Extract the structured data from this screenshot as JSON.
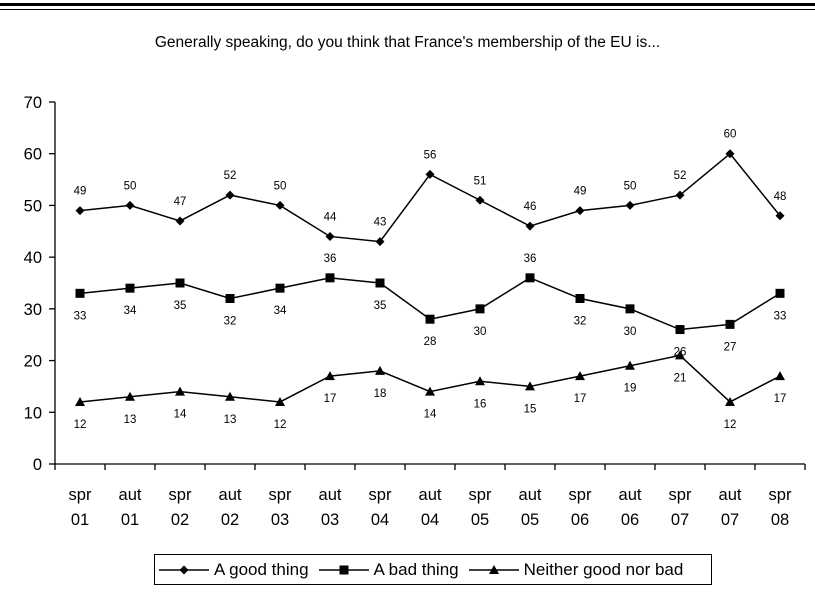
{
  "chart_data": {
    "type": "line",
    "title": "Generally speaking, do you think that France's membership of the EU is...",
    "xlabel": "",
    "ylabel": "",
    "categories": [
      [
        "spr",
        "01"
      ],
      [
        "aut",
        "01"
      ],
      [
        "spr",
        "02"
      ],
      [
        "aut",
        "02"
      ],
      [
        "spr",
        "03"
      ],
      [
        "aut",
        "03"
      ],
      [
        "spr",
        "04"
      ],
      [
        "aut",
        "04"
      ],
      [
        "spr",
        "05"
      ],
      [
        "aut",
        "05"
      ],
      [
        "spr",
        "06"
      ],
      [
        "aut",
        "06"
      ],
      [
        "spr",
        "07"
      ],
      [
        "aut",
        "07"
      ],
      [
        "spr",
        "08"
      ]
    ],
    "ylim": [
      0,
      70
    ],
    "yticks": [
      0,
      10,
      20,
      30,
      40,
      50,
      60,
      70
    ],
    "grid": false,
    "legend_position": "bottom",
    "series": [
      {
        "name": "A good thing",
        "marker": "diamond",
        "label_position": "above",
        "values": [
          49,
          50,
          47,
          52,
          50,
          44,
          43,
          56,
          51,
          46,
          49,
          50,
          52,
          60,
          48
        ]
      },
      {
        "name": "A bad thing",
        "marker": "square",
        "label_position": "below",
        "values": [
          33,
          34,
          35,
          32,
          34,
          36,
          35,
          28,
          30,
          36,
          32,
          30,
          26,
          27,
          33
        ],
        "label_above_indices": [
          5,
          9
        ]
      },
      {
        "name": "Neither good nor bad",
        "marker": "triangle",
        "label_position": "below",
        "values": [
          12,
          13,
          14,
          13,
          12,
          17,
          18,
          14,
          16,
          15,
          17,
          19,
          21,
          12,
          17
        ]
      }
    ],
    "line_color": "#000000"
  }
}
